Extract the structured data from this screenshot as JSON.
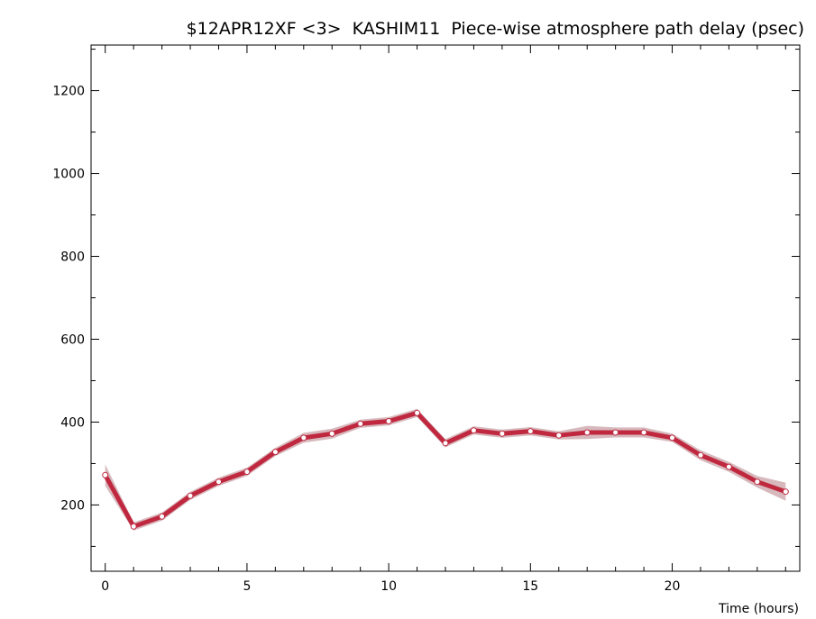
{
  "chart_data": {
    "type": "line",
    "title": "$12APR12XF <3>  KASHIM11  Piece-wise atmosphere path delay (psec)",
    "xlabel": "Time (hours)",
    "ylabel": "",
    "xlim": [
      -0.5,
      24.5
    ],
    "ylim": [
      40,
      1310
    ],
    "x_ticks": [
      0,
      5,
      10,
      15,
      20
    ],
    "x_tick_labels": [
      "0",
      "5",
      "10",
      "15",
      "20"
    ],
    "y_ticks": [
      200,
      400,
      600,
      800,
      1000,
      1200
    ],
    "y_tick_labels": [
      "200",
      "400",
      "600",
      "800",
      "1000",
      "1200"
    ],
    "grid": false,
    "colors": {
      "line": "#c0283f",
      "band": "#d7b9bd",
      "marker_fill": "#ffffff"
    },
    "series": [
      {
        "x": [
          0,
          1,
          2,
          3,
          4,
          5,
          6,
          7,
          8,
          9,
          10,
          11,
          12,
          13,
          14,
          15,
          16,
          17,
          18,
          19,
          20,
          21,
          22,
          23,
          24
        ],
        "y": [
          272,
          148,
          172,
          222,
          256,
          280,
          328,
          362,
          372,
          396,
          402,
          422,
          349,
          380,
          372,
          378,
          368,
          375,
          375,
          375,
          362,
          320,
          292,
          256,
          232
        ],
        "err": [
          26,
          10,
          10,
          10,
          10,
          10,
          10,
          12,
          12,
          10,
          10,
          10,
          10,
          10,
          10,
          10,
          10,
          16,
          12,
          12,
          10,
          12,
          12,
          14,
          22
        ]
      }
    ]
  }
}
